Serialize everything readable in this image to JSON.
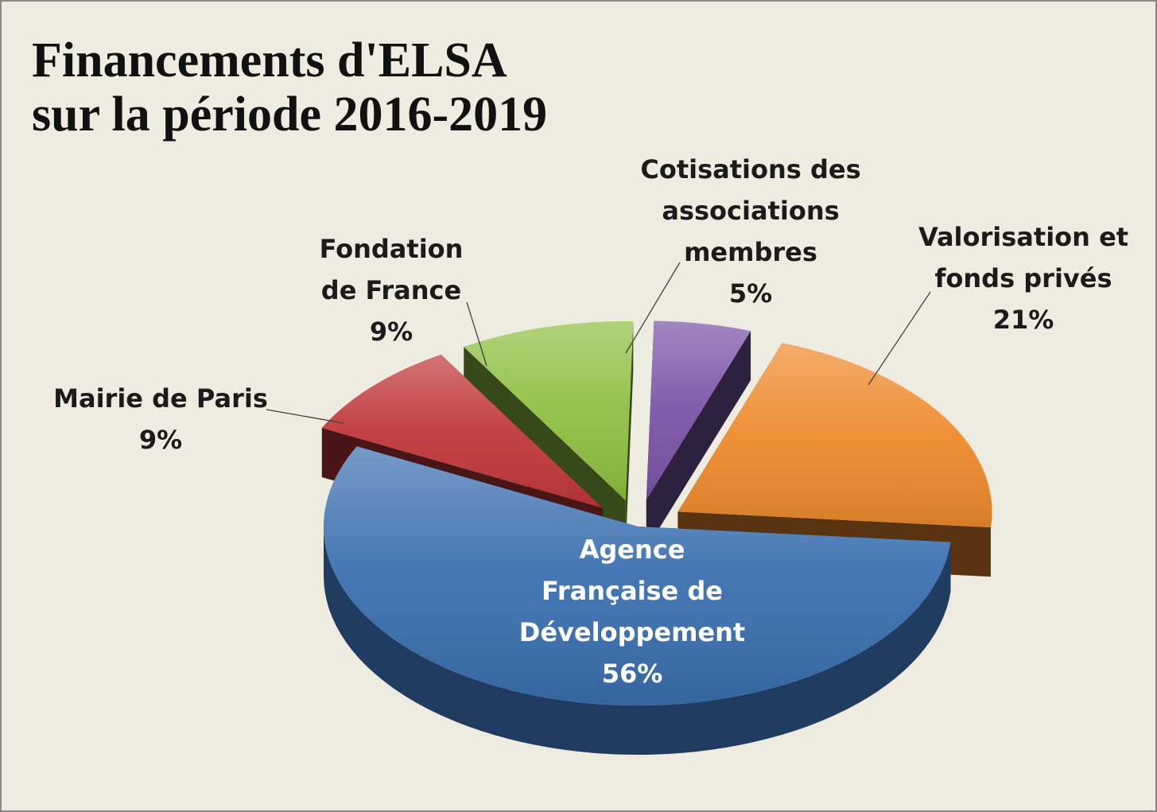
{
  "chart_data": {
    "type": "pie",
    "title_lines": [
      "Financements d'ELSA",
      "sur la période 2016-2019"
    ],
    "slices": [
      {
        "label_lines": [
          "Agence",
          "Française de",
          "Développement"
        ],
        "value": 56,
        "value_label": "56%",
        "color": "#3a6fb0"
      },
      {
        "label_lines": [
          "Mairie de Paris"
        ],
        "value": 9,
        "value_label": "9%",
        "color": "#c0373a"
      },
      {
        "label_lines": [
          "Fondation",
          "de France"
        ],
        "value": 9,
        "value_label": "9%",
        "color": "#8fbf42"
      },
      {
        "label_lines": [
          "Cotisations des",
          "associations",
          "membres"
        ],
        "value": 5,
        "value_label": "5%",
        "color": "#7a54a6"
      },
      {
        "label_lines": [
          "Valorisation et",
          "fonds privés"
        ],
        "value": 21,
        "value_label": "21%",
        "color": "#ee8a2c"
      }
    ],
    "exploded": true,
    "three_d": true,
    "legend": "none"
  }
}
